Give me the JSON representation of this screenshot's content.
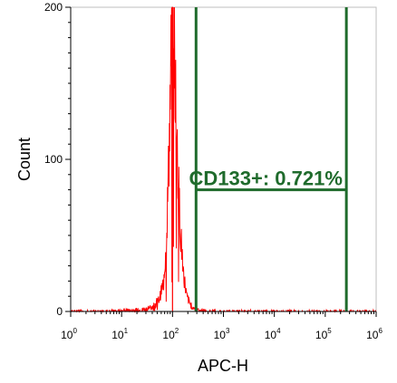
{
  "chart_data": {
    "type": "histogram",
    "xlabel": "APC-H",
    "ylabel": "Count",
    "x_scale": "log",
    "xlim": [
      1,
      1000000
    ],
    "ylim": [
      0,
      200
    ],
    "x_tick_labels": [
      {
        "base": "10",
        "exp": "0",
        "value": 1
      },
      {
        "base": "10",
        "exp": "1",
        "value": 10
      },
      {
        "base": "10",
        "exp": "2",
        "value": 100
      },
      {
        "base": "10",
        "exp": "3",
        "value": 1000
      },
      {
        "base": "10",
        "exp": "4",
        "value": 10000
      },
      {
        "base": "10",
        "exp": "5",
        "value": 100000
      },
      {
        "base": "10",
        "exp": "6",
        "value": 1000000
      }
    ],
    "y_tick_labels": [
      {
        "label": "0",
        "value": 0
      },
      {
        "label": "100",
        "value": 100
      },
      {
        "label": "200",
        "value": 200
      }
    ],
    "series_color": "#ff0000",
    "peak": {
      "x": 100,
      "y": 200
    },
    "histogram_profile": [
      [
        1,
        0
      ],
      [
        10,
        0.5
      ],
      [
        25,
        1
      ],
      [
        40,
        3
      ],
      [
        55,
        8
      ],
      [
        65,
        18
      ],
      [
        72,
        35
      ],
      [
        78,
        60
      ],
      [
        84,
        95
      ],
      [
        90,
        140
      ],
      [
        96,
        180
      ],
      [
        100,
        200
      ],
      [
        106,
        190
      ],
      [
        112,
        160
      ],
      [
        120,
        120
      ],
      [
        130,
        85
      ],
      [
        145,
        50
      ],
      [
        165,
        25
      ],
      [
        190,
        10
      ],
      [
        230,
        4
      ],
      [
        300,
        1
      ],
      [
        600,
        0
      ],
      [
        1000000,
        0
      ]
    ],
    "gate": {
      "label": "CD133+: 0.721%",
      "x_start": 290,
      "x_end": 260000,
      "y_level": 80,
      "color": "#1f6b2c"
    }
  }
}
